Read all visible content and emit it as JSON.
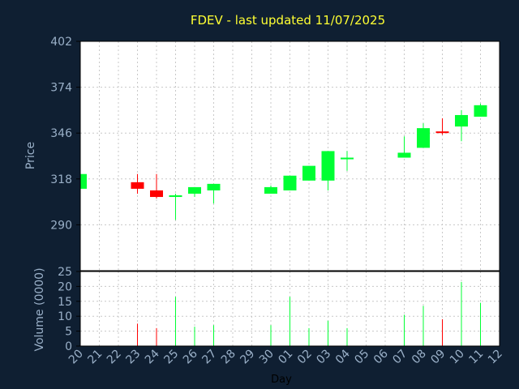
{
  "chart_data": {
    "type": "candlestick",
    "title": "FDEV - last updated 11/07/2025",
    "xlabel": "Day",
    "price": {
      "ylabel": "Price",
      "ylim": [
        262,
        402
      ],
      "yticks": [
        290,
        318,
        346,
        374,
        402
      ],
      "grid": true
    },
    "volume": {
      "ylabel": "Volume (0000)",
      "ylim": [
        0,
        25
      ],
      "yticks": [
        0,
        5,
        10,
        15,
        20,
        25
      ],
      "grid": true
    },
    "x_tick_labels": [
      "20",
      "21",
      "22",
      "23",
      "24",
      "25",
      "26",
      "27",
      "28",
      "29",
      "30",
      "01",
      "02",
      "03",
      "04",
      "05",
      "06",
      "07",
      "08",
      "09",
      "10",
      "11",
      "12"
    ],
    "candles": [
      {
        "day": "20",
        "open": 312,
        "high": 321,
        "low": 312,
        "close": 321,
        "volume": 0
      },
      {
        "day": "23",
        "open": 316,
        "high": 321,
        "low": 309,
        "close": 312,
        "volume": 7.5
      },
      {
        "day": "24",
        "open": 311,
        "high": 321,
        "low": 306,
        "close": 307,
        "volume": 6
      },
      {
        "day": "25",
        "open": 307,
        "high": 309,
        "low": 293,
        "close": 308,
        "volume": 16.5
      },
      {
        "day": "26",
        "open": 309,
        "high": 313,
        "low": 307,
        "close": 313,
        "volume": 6.5
      },
      {
        "day": "27",
        "open": 311,
        "high": 315,
        "low": 303,
        "close": 315,
        "volume": 7
      },
      {
        "day": "30",
        "open": 309,
        "high": 314,
        "low": 309,
        "close": 313,
        "volume": 7
      },
      {
        "day": "01",
        "open": 311,
        "high": 320,
        "low": 311,
        "close": 320,
        "volume": 16.5
      },
      {
        "day": "02",
        "open": 317,
        "high": 326,
        "low": 317,
        "close": 326,
        "volume": 6
      },
      {
        "day": "03",
        "open": 317,
        "high": 335,
        "low": 311,
        "close": 335,
        "volume": 8.5
      },
      {
        "day": "04",
        "open": 330,
        "high": 335,
        "low": 323,
        "close": 331,
        "volume": 6
      },
      {
        "day": "07",
        "open": 331,
        "high": 344,
        "low": 331,
        "close": 334,
        "volume": 10.5
      },
      {
        "day": "08",
        "open": 337,
        "high": 352,
        "low": 337,
        "close": 349,
        "volume": 13.5
      },
      {
        "day": "09",
        "open": 347,
        "high": 355,
        "low": 345,
        "close": 346,
        "volume": 9
      },
      {
        "day": "10",
        "open": 350,
        "high": 360,
        "low": 341,
        "close": 357,
        "volume": 21.5
      },
      {
        "day": "11",
        "open": 356,
        "high": 364,
        "low": 356,
        "close": 363,
        "volume": 14.5
      }
    ],
    "colors": {
      "up": "#00ff33",
      "down": "#ff0000",
      "background": "#0f1f32",
      "plot_background": "#ffffff",
      "title": "#ffff33",
      "axis_text": "#9ab0c8",
      "grid": "#c8c8c8"
    }
  }
}
